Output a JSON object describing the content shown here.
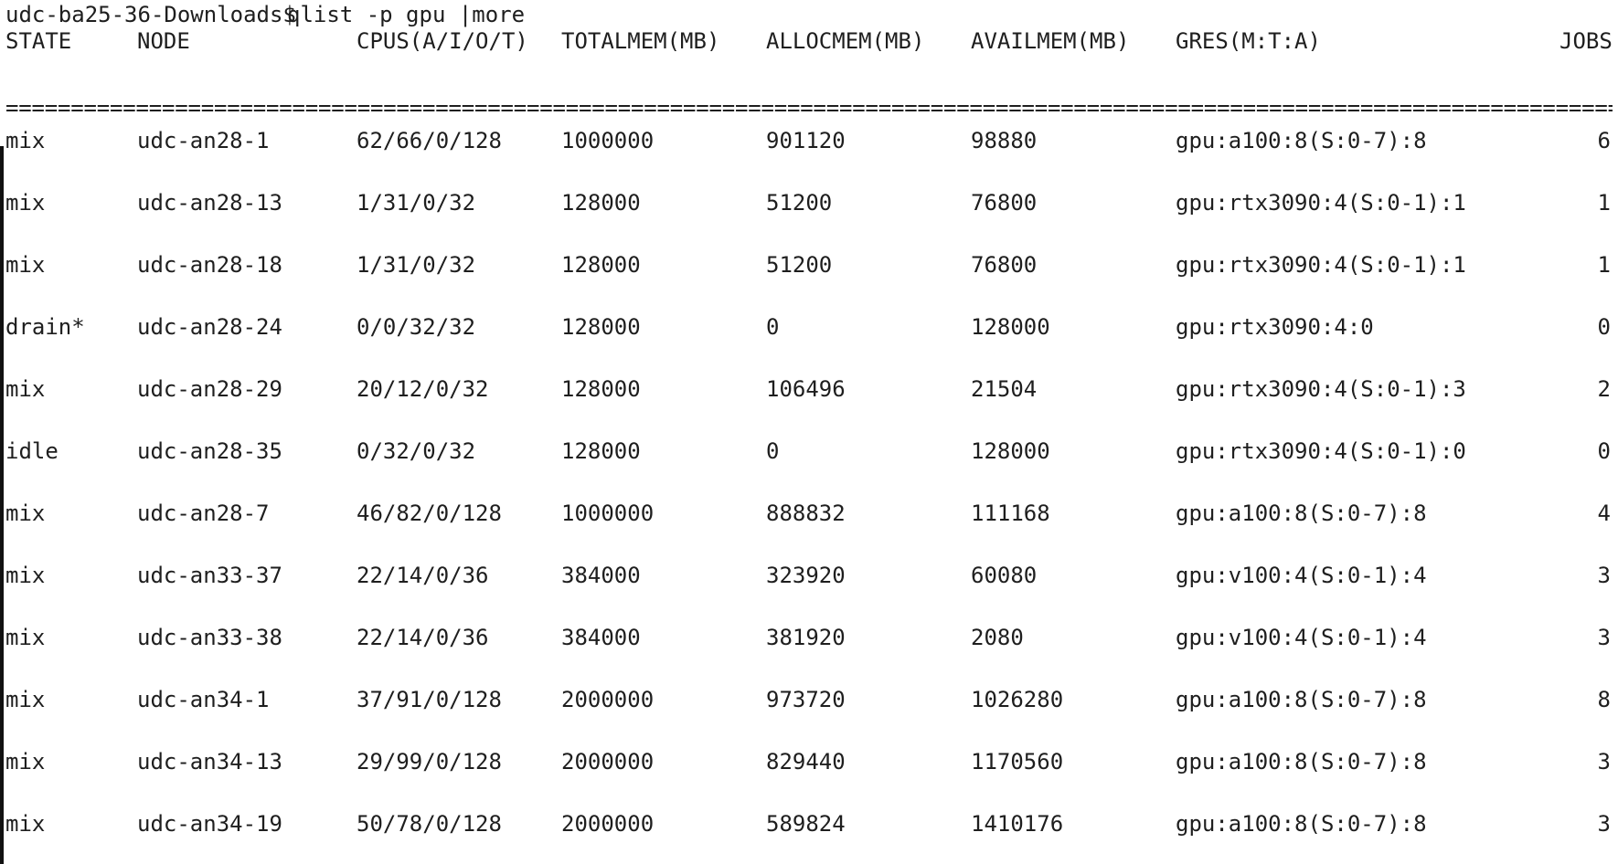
{
  "prompt": {
    "host": "udc-ba25-36-Downloads$",
    "command": "qlist -p gpu |more"
  },
  "table": {
    "headers": [
      "STATE",
      "NODE",
      "CPUS(A/I/O/T)",
      "TOTALMEM(MB)",
      "ALLOCMEM(MB)",
      "AVAILMEM(MB)",
      "GRES(M:T:A)",
      "JOBS"
    ],
    "separator": "==================================================================================================================================================================",
    "rows": [
      [
        "mix",
        "udc-an28-1",
        "62/66/0/128",
        "1000000",
        "901120",
        "98880",
        "gpu:a100:8(S:0-7):8",
        "6"
      ],
      [
        "mix",
        "udc-an28-13",
        "1/31/0/32",
        "128000",
        "51200",
        "76800",
        "gpu:rtx3090:4(S:0-1):1",
        "1"
      ],
      [
        "mix",
        "udc-an28-18",
        "1/31/0/32",
        "128000",
        "51200",
        "76800",
        "gpu:rtx3090:4(S:0-1):1",
        "1"
      ],
      [
        "drain*",
        "udc-an28-24",
        "0/0/32/32",
        "128000",
        "0",
        "128000",
        "gpu:rtx3090:4:0",
        "0"
      ],
      [
        "mix",
        "udc-an28-29",
        "20/12/0/32",
        "128000",
        "106496",
        "21504",
        "gpu:rtx3090:4(S:0-1):3",
        "2"
      ],
      [
        "idle",
        "udc-an28-35",
        "0/32/0/32",
        "128000",
        "0",
        "128000",
        "gpu:rtx3090:4(S:0-1):0",
        "0"
      ],
      [
        "mix",
        "udc-an28-7",
        "46/82/0/128",
        "1000000",
        "888832",
        "111168",
        "gpu:a100:8(S:0-7):8",
        "4"
      ],
      [
        "mix",
        "udc-an33-37",
        "22/14/0/36",
        "384000",
        "323920",
        "60080",
        "gpu:v100:4(S:0-1):4",
        "3"
      ],
      [
        "mix",
        "udc-an33-38",
        "22/14/0/36",
        "384000",
        "381920",
        "2080",
        "gpu:v100:4(S:0-1):4",
        "3"
      ],
      [
        "mix",
        "udc-an34-1",
        "37/91/0/128",
        "2000000",
        "973720",
        "1026280",
        "gpu:a100:8(S:0-7):8",
        "8"
      ],
      [
        "mix",
        "udc-an34-13",
        "29/99/0/128",
        "2000000",
        "829440",
        "1170560",
        "gpu:a100:8(S:0-7):8",
        "3"
      ],
      [
        "mix",
        "udc-an34-19",
        "50/78/0/128",
        "2000000",
        "589824",
        "1410176",
        "gpu:a100:8(S:0-7):8",
        "3"
      ]
    ]
  },
  "colors": {
    "background": "#ffffff",
    "text": "#1e1e1e"
  }
}
